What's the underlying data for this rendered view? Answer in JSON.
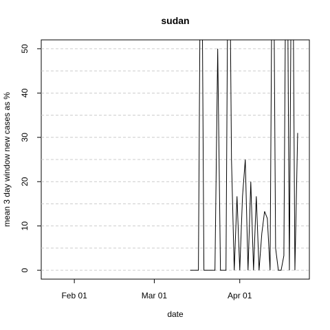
{
  "chart_data": {
    "type": "line",
    "title": "sudan",
    "xlabel": "date",
    "ylabel": "mean  3  day window new cases as %",
    "x": [
      74,
      75,
      76,
      77,
      78,
      79,
      80,
      81,
      82,
      83,
      84,
      85,
      86,
      87,
      88,
      89,
      90,
      91,
      92,
      93,
      94,
      95,
      96,
      97,
      98,
      99,
      100,
      101,
      102,
      103,
      104,
      105,
      106,
      107,
      108,
      109,
      110,
      111,
      112,
      113
    ],
    "series": [
      {
        "name": "sudan",
        "color": "#000000",
        "values": [
          0,
          0,
          0,
          0,
          100,
          0,
          0,
          0,
          0,
          0,
          50,
          0,
          0,
          0,
          100,
          25,
          0,
          16.7,
          0,
          16.7,
          25,
          0,
          20,
          0,
          16.7,
          0,
          8.3,
          13.3,
          11.7,
          0,
          100,
          5,
          0,
          0,
          3.3,
          100,
          0,
          100,
          0,
          31
        ]
      }
    ],
    "xlim": [
      20,
      117.25
    ],
    "xticks": [
      {
        "value": 32,
        "label": "Feb 01"
      },
      {
        "value": 61,
        "label": "Mar 01"
      },
      {
        "value": 92,
        "label": "Apr 01"
      }
    ],
    "ylim": [
      -2,
      52
    ],
    "yticks": [
      0,
      10,
      20,
      30,
      40,
      50
    ],
    "ygrid": [
      0,
      5,
      10,
      15,
      20,
      25,
      30,
      35,
      40,
      45,
      50
    ],
    "grid": true
  }
}
